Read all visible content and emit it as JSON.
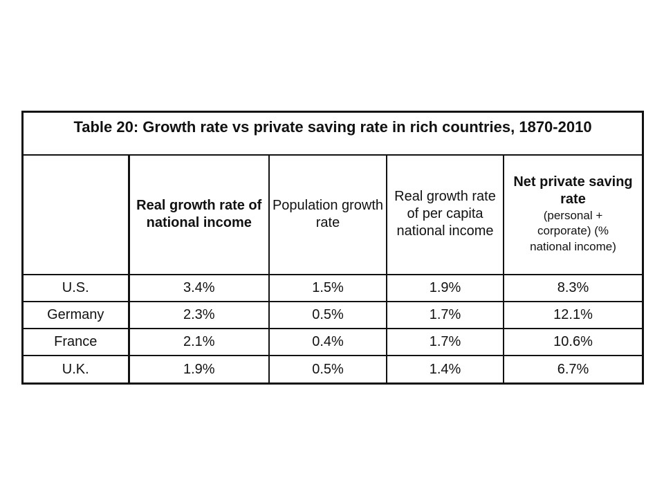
{
  "table": {
    "title": "Table 20: Growth rate vs private saving rate in rich countries, 1870-2010",
    "headers": {
      "real_growth": "Real growth rate of national income",
      "population": "Population growth rate",
      "per_capita": "Real growth rate of per capita national income",
      "saving_main": "Net private saving rate",
      "saving_sub_1": "(personal +",
      "saving_sub_2": "corporate) (%",
      "saving_sub_3": "national income)"
    },
    "rows": [
      {
        "country": "U.S.",
        "real_growth": "3.4%",
        "population": "1.5%",
        "per_capita": "1.9%",
        "saving": "8.3%"
      },
      {
        "country": "Germany",
        "real_growth": "2.3%",
        "population": "0.5%",
        "per_capita": "1.7%",
        "saving": "12.1%"
      },
      {
        "country": "France",
        "real_growth": "2.1%",
        "population": "0.4%",
        "per_capita": "1.7%",
        "saving": "10.6%"
      },
      {
        "country": "U.K.",
        "real_growth": "1.9%",
        "population": "0.5%",
        "per_capita": "1.4%",
        "saving": "6.7%"
      }
    ]
  }
}
